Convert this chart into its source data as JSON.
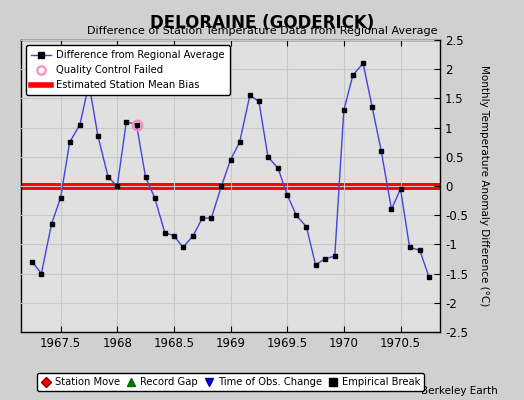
{
  "title": "DELORAINE (GODERICK)",
  "subtitle": "Difference of Station Temperature Data from Regional Average",
  "ylabel": "Monthly Temperature Anomaly Difference (°C)",
  "xlabel_ticks": [
    1967.5,
    1968,
    1968.5,
    1969,
    1969.5,
    1970,
    1970.5
  ],
  "yticks": [
    -2.5,
    -2,
    -1.5,
    -1,
    -0.5,
    0,
    0.5,
    1,
    1.5,
    2,
    2.5
  ],
  "ylim": [
    -2.5,
    2.5
  ],
  "xlim": [
    1967.15,
    1970.85
  ],
  "bias_value": 0.0,
  "line_color": "#4444dd",
  "marker_color": "#000000",
  "bias_color": "#ff0000",
  "qc_fail_x": 1968.17,
  "qc_fail_y": 1.05,
  "plot_bg_color": "#e0e0e0",
  "fig_bg_color": "#d0d0d0",
  "x_data": [
    1967.25,
    1967.33,
    1967.42,
    1967.5,
    1967.58,
    1967.67,
    1967.75,
    1967.83,
    1967.92,
    1968.0,
    1968.08,
    1968.17,
    1968.25,
    1968.33,
    1968.42,
    1968.5,
    1968.58,
    1968.67,
    1968.75,
    1968.83,
    1968.92,
    1969.0,
    1969.08,
    1969.17,
    1969.25,
    1969.33,
    1969.42,
    1969.5,
    1969.58,
    1969.67,
    1969.75,
    1969.83,
    1969.92,
    1970.0,
    1970.08,
    1970.17,
    1970.25,
    1970.33,
    1970.42,
    1970.5,
    1970.58,
    1970.67,
    1970.75
  ],
  "y_data": [
    -1.3,
    -1.5,
    -0.65,
    -0.2,
    0.75,
    1.05,
    1.75,
    0.85,
    0.15,
    0.0,
    1.1,
    1.05,
    0.15,
    -0.2,
    -0.8,
    -0.85,
    -1.05,
    -0.85,
    -0.55,
    -0.55,
    0.0,
    0.45,
    0.75,
    1.55,
    1.45,
    0.5,
    0.3,
    -0.15,
    -0.5,
    -0.7,
    -1.35,
    -1.25,
    -1.2,
    1.3,
    1.9,
    2.1,
    1.35,
    0.6,
    -0.4,
    -0.05,
    -1.05,
    -1.1,
    -1.55
  ],
  "legend_line_label": "Difference from Regional Average",
  "legend_qc_label": "Quality Control Failed",
  "legend_bias_label": "Estimated Station Mean Bias",
  "legend_station_move_label": "Station Move",
  "legend_record_gap_label": "Record Gap",
  "legend_time_obs_label": "Time of Obs. Change",
  "legend_empirical_label": "Empirical Break",
  "watermark": "Berkeley Earth",
  "grid_color": "#c8c8c8"
}
